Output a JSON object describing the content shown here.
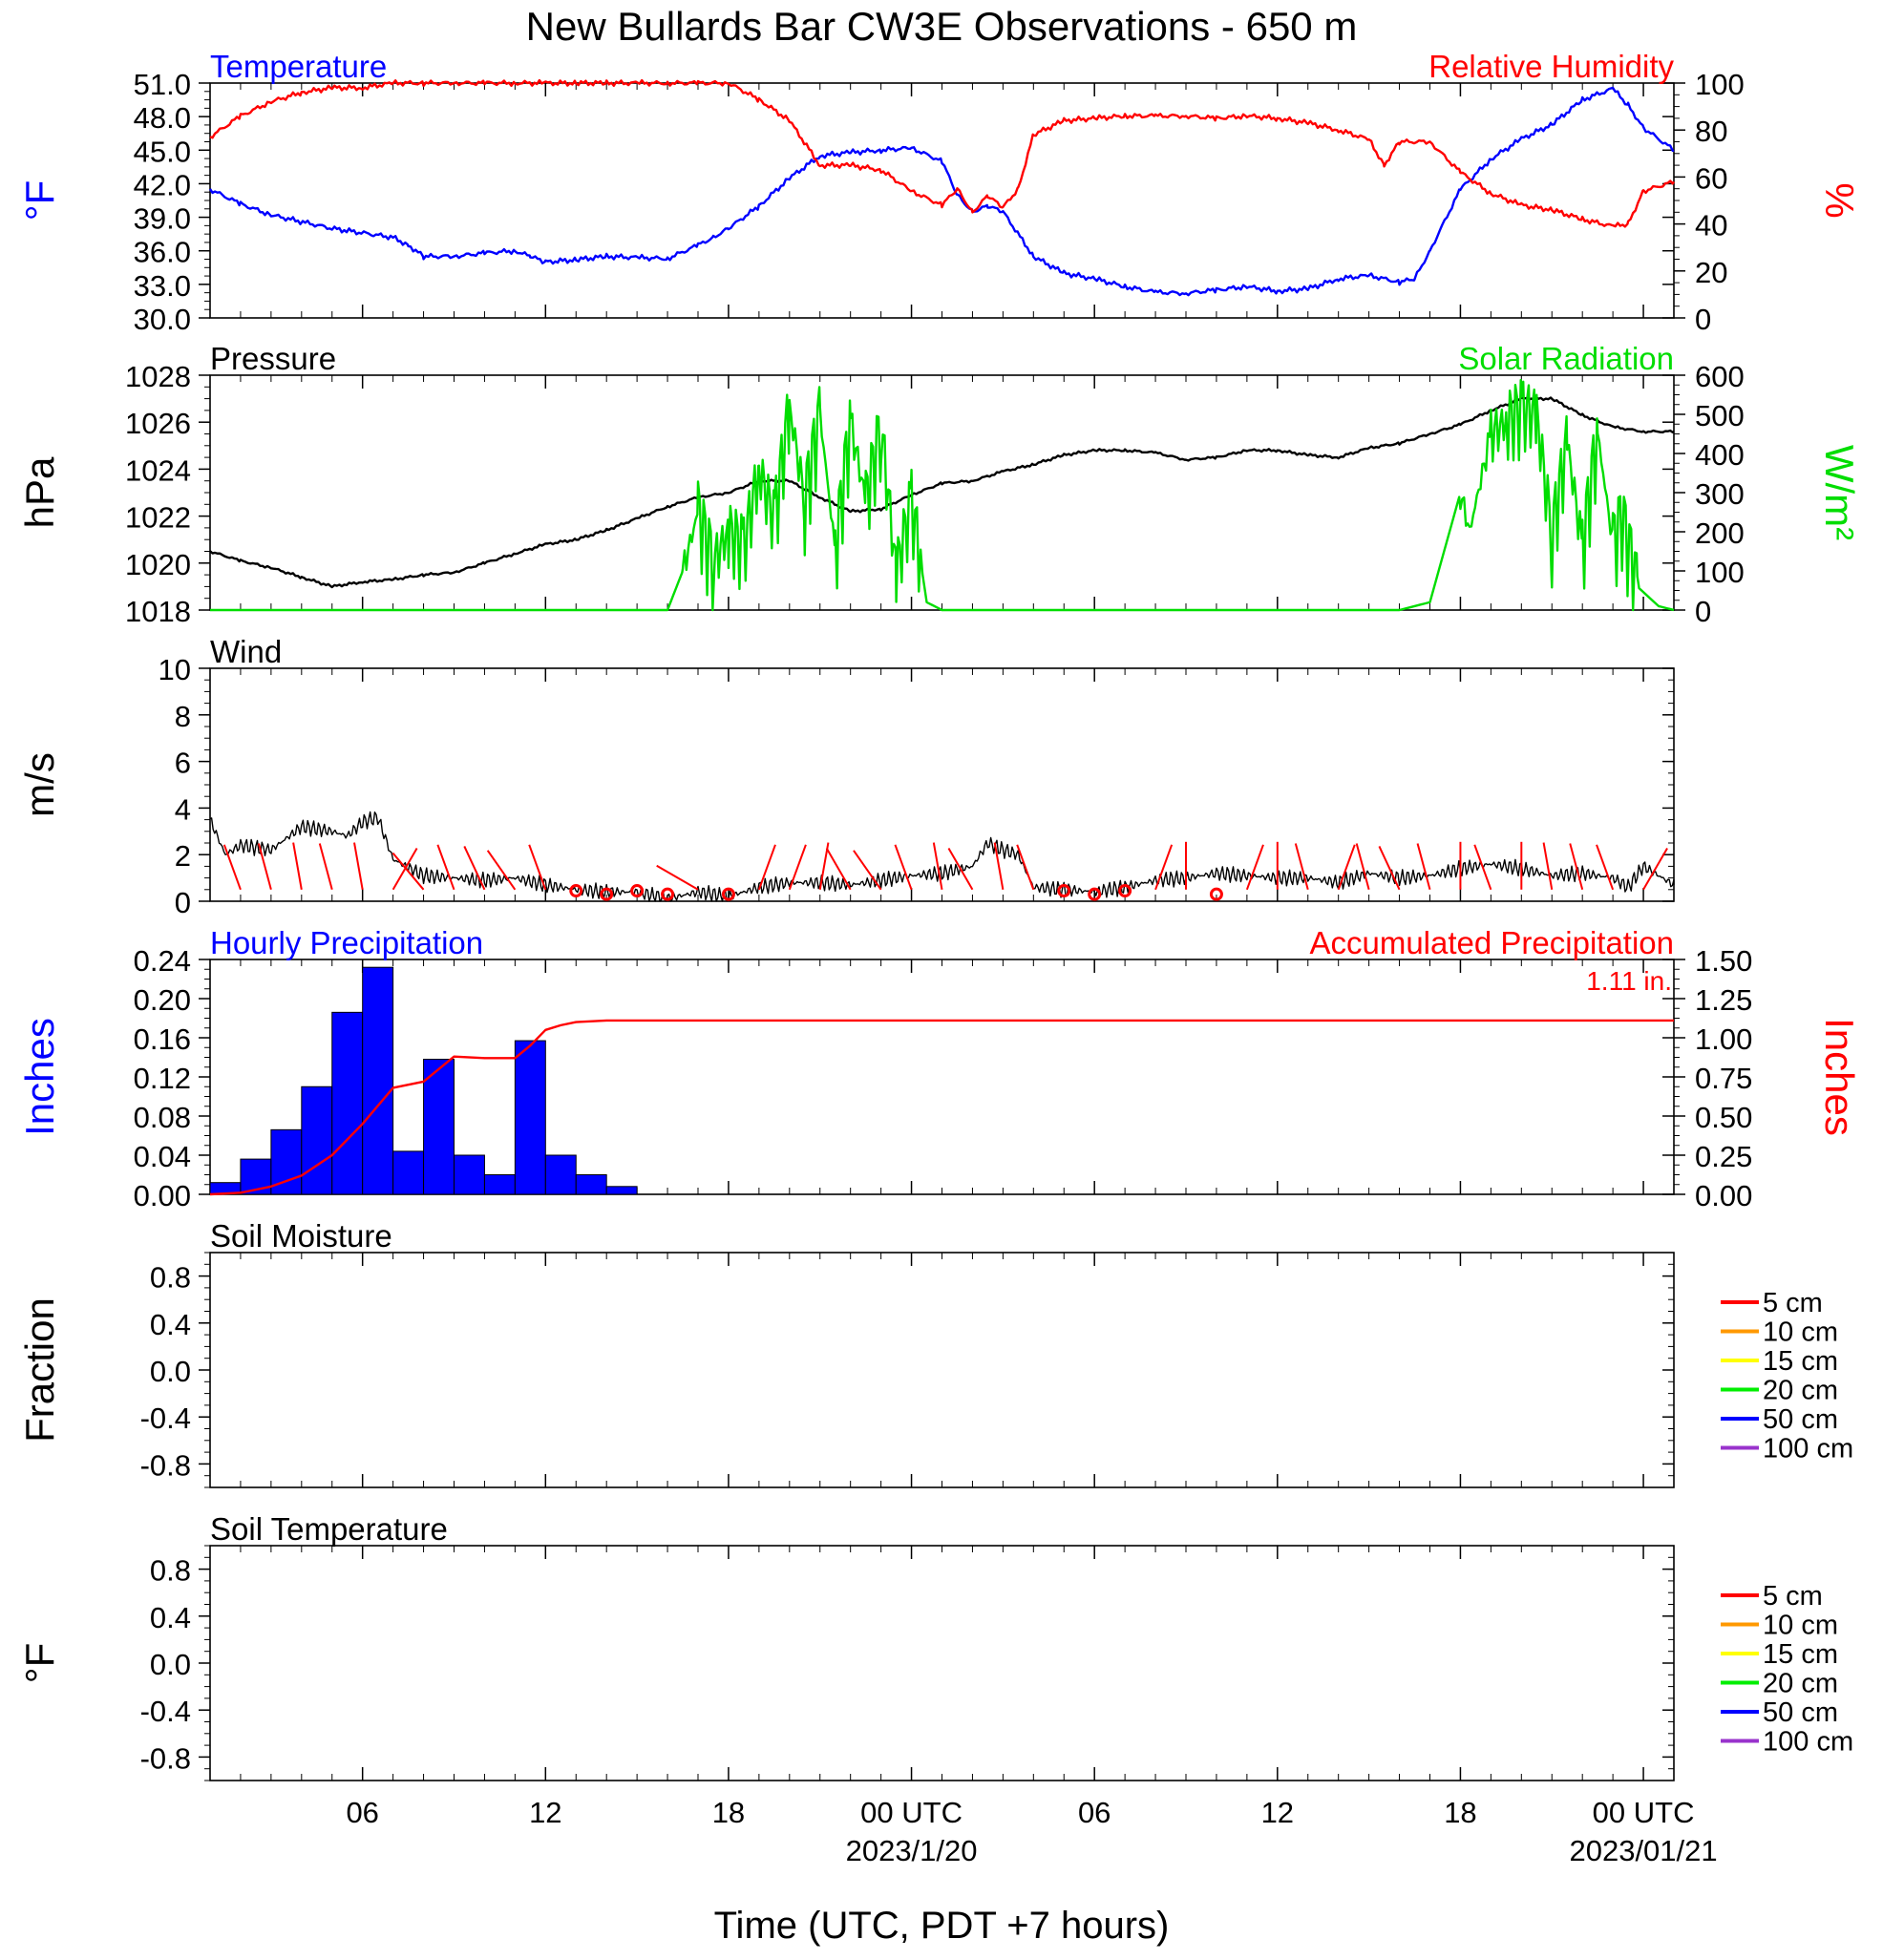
{
  "title": "New Bullards Bar CW3E Observations - 650 m",
  "xlabel": "Time (UTC, PDT +7 hours)",
  "x_ticks": [
    {
      "hour": 6,
      "label": "06"
    },
    {
      "hour": 12,
      "label": "12"
    },
    {
      "hour": 18,
      "label": "18"
    },
    {
      "hour": 24,
      "label": "00 UTC",
      "date": "2023/1/20"
    },
    {
      "hour": 30,
      "label": "06"
    },
    {
      "hour": 36,
      "label": "12"
    },
    {
      "hour": 42,
      "label": "18"
    },
    {
      "hour": 48,
      "label": "00 UTC",
      "date": "2023/01/21"
    }
  ],
  "x_range_hours": [
    1,
    49
  ],
  "colors": {
    "temperature": "#0000ff",
    "humidity": "#ff0000",
    "pressure": "#000000",
    "solar": "#00dd00",
    "wind": "#000000",
    "barb": "#ff0000",
    "hourly_precip": "#0000ff",
    "accum_precip": "#ff0000"
  },
  "chart_data": [
    {
      "type": "line",
      "left_title": "Temperature",
      "right_title": "Relative Humidity",
      "left_unit": "°F",
      "right_unit": "%",
      "left_ticks": [
        "51.0",
        "48.0",
        "45.0",
        "42.0",
        "39.0",
        "36.0",
        "33.0",
        "30.0"
      ],
      "left_ylim": [
        30,
        51
      ],
      "right_ticks": [
        "100",
        "80",
        "60",
        "40",
        "20",
        "0"
      ],
      "right_ylim": [
        0,
        100
      ],
      "series": [
        {
          "key": "temperature",
          "axis": "left",
          "x": [
            1,
            2,
            3,
            5,
            7,
            7.5,
            8,
            9,
            10,
            11,
            11.5,
            12,
            13,
            14,
            15,
            16,
            17,
            17.5,
            18,
            19,
            20,
            21,
            22,
            23,
            24,
            25,
            25.5,
            26,
            26.5,
            27,
            28,
            29,
            30,
            31,
            32,
            33,
            34,
            35,
            36,
            37,
            38,
            39,
            40,
            40.5,
            41,
            42,
            43,
            44,
            45,
            46,
            47,
            47.5,
            48,
            49
          ],
          "y": [
            41.5,
            40.2,
            39.2,
            38,
            37.2,
            36.5,
            35.5,
            35.5,
            35.8,
            36,
            35.5,
            35,
            35.2,
            35.5,
            35.4,
            35.3,
            36.5,
            37.2,
            38,
            40,
            42.5,
            44.5,
            44.8,
            45,
            45.2,
            44,
            41,
            39.5,
            40,
            39.5,
            35.5,
            34,
            33.5,
            32.8,
            32.3,
            32.2,
            32.5,
            32.8,
            32.4,
            32.6,
            33.5,
            33.8,
            33.2,
            33.5,
            36,
            41.5,
            44.2,
            46,
            47.3,
            49.5,
            50.5,
            49,
            47,
            45
          ]
        },
        {
          "key": "humidity",
          "axis": "right",
          "x": [
            1,
            2,
            3,
            4,
            5,
            6,
            7,
            8,
            9,
            10,
            11,
            12,
            13,
            14,
            15,
            16,
            17,
            18,
            19,
            20,
            21,
            22,
            23,
            24,
            25,
            25.5,
            26,
            26.5,
            27,
            27.5,
            28,
            29,
            30,
            31,
            32,
            33,
            34,
            35,
            36,
            37,
            38,
            39,
            39.5,
            40,
            41,
            42,
            43,
            44,
            45,
            46,
            47,
            47.5,
            48,
            49
          ],
          "y": [
            77,
            86,
            92,
            96,
            98,
            98,
            100,
            100,
            100,
            100,
            100,
            100,
            100,
            100,
            100,
            100,
            100,
            100,
            93,
            84,
            65,
            65,
            63,
            54,
            48,
            55,
            45,
            52,
            47,
            55,
            78,
            84,
            85,
            86,
            86,
            86,
            85,
            86,
            85,
            83,
            80,
            76,
            65,
            75,
            75,
            62,
            53,
            48,
            46,
            42,
            39,
            40,
            54,
            58
          ]
        }
      ]
    },
    {
      "type": "line",
      "left_title": "Pressure",
      "right_title": "Solar Radiation",
      "left_unit": "hPa",
      "right_unit": "W/m²",
      "left_ticks": [
        "1028",
        "1026",
        "1024",
        "1022",
        "1020",
        "1018"
      ],
      "left_ylim": [
        1018,
        1028
      ],
      "right_ticks": [
        "600",
        "500",
        "400",
        "300",
        "200",
        "100",
        "0"
      ],
      "right_ylim": [
        0,
        600
      ],
      "series": [
        {
          "key": "pressure",
          "axis": "left",
          "x": [
            1,
            2,
            3,
            4,
            5,
            6,
            7,
            8,
            9,
            10,
            11,
            12,
            13,
            14,
            15,
            16,
            17,
            18,
            19,
            20,
            21,
            22,
            23,
            24,
            25,
            26,
            27,
            28,
            29,
            30,
            31,
            32,
            33,
            34,
            35,
            36,
            37,
            38,
            39,
            40,
            41,
            42,
            43,
            44,
            45,
            46,
            47,
            48,
            49
          ],
          "y": [
            1020.5,
            1020.1,
            1019.8,
            1019.4,
            1019,
            1019.2,
            1019.3,
            1019.5,
            1019.6,
            1020,
            1020.4,
            1020.8,
            1021,
            1021.4,
            1021.9,
            1022.4,
            1022.8,
            1023,
            1023.5,
            1023.5,
            1022.8,
            1022.2,
            1022.3,
            1022.9,
            1023.4,
            1023.5,
            1023.9,
            1024.2,
            1024.6,
            1024.8,
            1024.8,
            1024.7,
            1024.4,
            1024.5,
            1024.8,
            1024.8,
            1024.6,
            1024.5,
            1024.9,
            1025.1,
            1025.5,
            1025.9,
            1026.5,
            1027,
            1027,
            1026.3,
            1025.8,
            1025.6,
            1025.6
          ]
        },
        {
          "key": "solar",
          "axis": "right",
          "x": [
            1,
            16,
            16.5,
            17,
            17.5,
            18,
            18.5,
            19,
            19.5,
            20,
            20.5,
            21,
            21.5,
            22,
            22.5,
            23,
            23.5,
            24,
            24.5,
            25,
            30,
            40,
            41,
            42,
            42.3,
            43,
            43.5,
            44,
            44.5,
            45,
            45.5,
            46,
            46.5,
            47,
            47.3,
            47.8,
            48.5,
            49
          ],
          "y": [
            0,
            0,
            100,
            250,
            120,
            200,
            160,
            360,
            230,
            520,
            280,
            500,
            150,
            480,
            280,
            470,
            100,
            280,
            20,
            0,
            0,
            0,
            20,
            300,
            200,
            450,
            480,
            510,
            500,
            190,
            430,
            160,
            450,
            170,
            240,
            60,
            10,
            0
          ],
          "spike_ranges": [
            [
              16.5,
              24.3
            ],
            [
              42,
              47.8
            ]
          ]
        }
      ]
    },
    {
      "type": "line",
      "left_title": "Wind",
      "left_unit": "m/s",
      "left_ticks": [
        "10",
        "8",
        "6",
        "4",
        "2",
        "0"
      ],
      "left_ylim": [
        0,
        10
      ],
      "series": [
        {
          "key": "wind",
          "axis": "left",
          "x": [
            1,
            1.5,
            2,
            3,
            4,
            5,
            5.5,
            6,
            6.5,
            7,
            8,
            9,
            10,
            11,
            12,
            13,
            14,
            15,
            16,
            17,
            18,
            19,
            20,
            21,
            22,
            23,
            24,
            25,
            26,
            26.5,
            27,
            27.5,
            28,
            29,
            30,
            31,
            32,
            33,
            34,
            35,
            36,
            37,
            38,
            39,
            40,
            41,
            42,
            43,
            44,
            45,
            46,
            47,
            47.5,
            48,
            49
          ],
          "y": [
            3.5,
            2,
            2.4,
            2.2,
            3.2,
            3,
            2.8,
            3.4,
            3.6,
            1.8,
            1.1,
            1,
            0.9,
            1,
            0.7,
            0.5,
            0.4,
            0.4,
            0.1,
            0.4,
            0.2,
            0.6,
            0.8,
            0.8,
            0.7,
            0.9,
            1.1,
            1.2,
            1.5,
            2.5,
            2.2,
            2,
            0.6,
            0.5,
            0.4,
            0.6,
            0.9,
            1,
            1.2,
            1.1,
            1,
            1,
            0.8,
            1.2,
            1,
            1.1,
            1.4,
            1.6,
            1.4,
            1.1,
            1.2,
            1,
            0.6,
            1.5,
            0.7
          ]
        }
      ],
      "barbs": {
        "x": [
          2,
          3,
          4,
          5,
          6,
          7,
          8,
          9,
          10,
          11,
          12,
          13,
          14,
          15,
          16,
          17,
          18,
          19,
          20,
          21,
          22,
          23,
          24,
          25,
          26,
          27,
          28,
          29,
          30,
          31,
          32,
          33,
          34,
          35,
          36,
          37,
          38,
          39,
          40,
          41,
          42,
          43,
          44,
          45,
          46,
          47,
          48
        ],
        "angle": [
          -20,
          -15,
          -10,
          -15,
          -10,
          30,
          -40,
          -20,
          -25,
          -35,
          -20,
          0,
          0,
          0,
          0,
          -60,
          0,
          20,
          20,
          10,
          -30,
          -35,
          -20,
          -10,
          -30,
          -10,
          -20,
          0,
          0,
          0,
          20,
          0,
          -10,
          20,
          0,
          -15,
          20,
          -15,
          -25,
          -15,
          0,
          -20,
          0,
          -10,
          -15,
          -20,
          30
        ],
        "calm": [
          false,
          false,
          false,
          false,
          false,
          false,
          false,
          false,
          false,
          false,
          false,
          true,
          true,
          true,
          true,
          false,
          true,
          false,
          false,
          false,
          false,
          false,
          false,
          false,
          false,
          false,
          false,
          true,
          true,
          true,
          false,
          false,
          true,
          false,
          false,
          false,
          false,
          false,
          false,
          false,
          false,
          false,
          false,
          false,
          false,
          false,
          false
        ]
      }
    },
    {
      "type": "bar",
      "left_title": "Hourly Precipitation",
      "right_title": "Accumulated Precipitation",
      "left_unit": "Inches",
      "right_unit": "Inches",
      "left_ticks": [
        "0.24",
        "0.20",
        "0.16",
        "0.12",
        "0.08",
        "0.04",
        "0.00"
      ],
      "left_ylim": [
        0,
        0.24
      ],
      "right_ticks": [
        "1.50",
        "1.25",
        "1.00",
        "0.75",
        "0.50",
        "0.25",
        "0.00"
      ],
      "right_ylim": [
        0,
        1.5
      ],
      "total_label": "1.11 in.",
      "series": [
        {
          "key": "hourly_precip",
          "axis": "left",
          "x": [
            1,
            2,
            3,
            4,
            5,
            6,
            7,
            8,
            9,
            10,
            11,
            12,
            13,
            14
          ],
          "y": [
            0.012,
            0.036,
            0.066,
            0.11,
            0.186,
            0.232,
            0.044,
            0.138,
            0.04,
            0.02,
            0.157,
            0.04,
            0.02,
            0.008
          ]
        },
        {
          "key": "accum_precip",
          "axis": "right",
          "x": [
            1,
            2,
            3,
            4,
            5,
            6,
            7,
            8,
            9,
            10,
            11,
            11.5,
            12,
            12.5,
            13,
            14,
            15,
            49
          ],
          "y": [
            0,
            0.01,
            0.05,
            0.12,
            0.25,
            0.45,
            0.68,
            0.72,
            0.88,
            0.87,
            0.87,
            0.95,
            1.05,
            1.08,
            1.1,
            1.11,
            1.11,
            1.11
          ]
        }
      ]
    },
    {
      "type": "line",
      "left_title": "Soil Moisture",
      "left_unit": "Fraction",
      "left_ticks": [
        "0.8",
        "0.4",
        "0.0",
        "-0.4",
        "-0.8"
      ],
      "left_ylim": [
        -1,
        1
      ],
      "legend": [
        {
          "label": "5 cm",
          "color": "#ff0000"
        },
        {
          "label": "10 cm",
          "color": "#ff9900"
        },
        {
          "label": "15 cm",
          "color": "#ffff00"
        },
        {
          "label": "20 cm",
          "color": "#00ee00"
        },
        {
          "label": "50 cm",
          "color": "#0000ff"
        },
        {
          "label": "100 cm",
          "color": "#9933cc"
        }
      ],
      "series": []
    },
    {
      "type": "line",
      "left_title": "Soil Temperature",
      "left_unit": "°F",
      "left_ticks": [
        "0.8",
        "0.4",
        "0.0",
        "-0.4",
        "-0.8"
      ],
      "left_ylim": [
        -1,
        1
      ],
      "legend": [
        {
          "label": "5 cm",
          "color": "#ff0000"
        },
        {
          "label": "10 cm",
          "color": "#ff9900"
        },
        {
          "label": "15 cm",
          "color": "#ffff00"
        },
        {
          "label": "20 cm",
          "color": "#00ee00"
        },
        {
          "label": "50 cm",
          "color": "#0000ff"
        },
        {
          "label": "100 cm",
          "color": "#9933cc"
        }
      ],
      "series": []
    }
  ]
}
